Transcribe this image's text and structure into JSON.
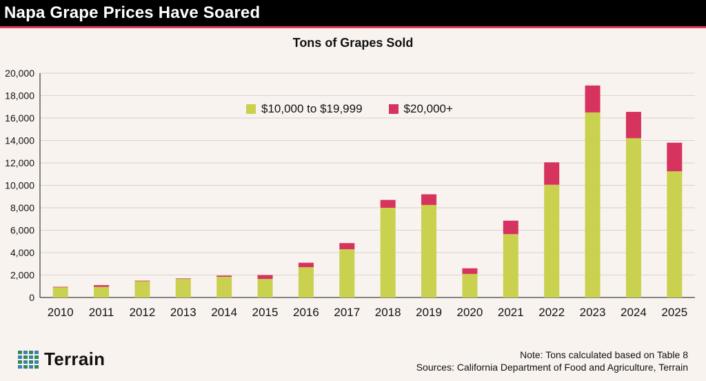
{
  "header": {
    "title": "Napa Grape Prices Have Soared"
  },
  "colors": {
    "title_bg": "#000000",
    "accent": "#e03a63",
    "series_low": "#c9d14f",
    "series_high": "#d6335e",
    "logo_green": "#2f8a4e",
    "logo_blue": "#3a7fb8"
  },
  "logo": {
    "text": "Terrain",
    "icon": "terrain-logo-grid-icon"
  },
  "notes": {
    "note": "Note: Tons calculated based on Table 8",
    "sources": "Sources: California Department of Food and Agriculture, Terrain"
  },
  "chart_data": {
    "type": "bar",
    "stacked": true,
    "title": "Tons of Grapes Sold",
    "xlabel": "",
    "ylabel": "",
    "ylim": [
      0,
      20000
    ],
    "yticks": [
      0,
      2000,
      4000,
      6000,
      8000,
      10000,
      12000,
      14000,
      16000,
      18000,
      20000
    ],
    "ytick_labels": [
      "0",
      "2,000",
      "4,000",
      "6,000",
      "8,000",
      "10,000",
      "12,000",
      "14,000",
      "16,000",
      "18,000",
      "20,000"
    ],
    "grid": true,
    "legend_position": "top-center",
    "categories": [
      "2010",
      "2011",
      "2012",
      "2013",
      "2014",
      "2015",
      "2016",
      "2017",
      "2018",
      "2019",
      "2020",
      "2021",
      "2022",
      "2023",
      "2024",
      "2025"
    ],
    "series": [
      {
        "name": "$10,000 to $19,999",
        "color": "#c9d14f",
        "values": [
          900,
          950,
          1450,
          1650,
          1850,
          1650,
          2700,
          4300,
          8000,
          8250,
          2100,
          5650,
          10050,
          16500,
          14200,
          11250
        ]
      },
      {
        "name": "$20,000+",
        "color": "#d6335e",
        "values": [
          50,
          150,
          50,
          50,
          100,
          350,
          400,
          550,
          700,
          950,
          500,
          1200,
          2000,
          2400,
          2350,
          2550
        ]
      }
    ]
  }
}
